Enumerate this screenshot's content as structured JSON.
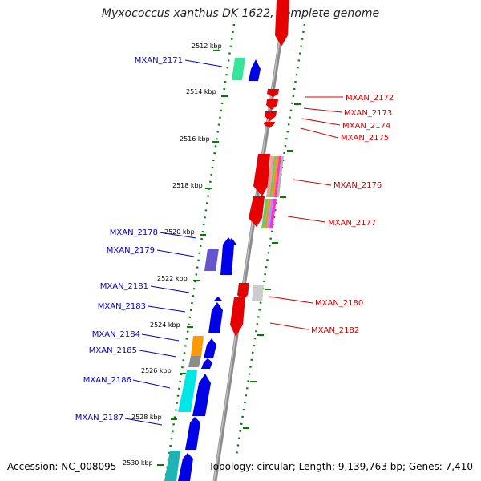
{
  "title": "Myxococcus xanthus DK 1622, complete genome",
  "footer": {
    "accession": "Accession: NC_008095",
    "summary": "Topology: circular; Length: 9,139,763 bp; Genes: 7,410"
  },
  "positions": [
    "2512 kbp",
    "2514 kbp",
    "2516 kbp",
    "2518 kbp",
    "2520 kbp",
    "2522 kbp",
    "2524 kbp",
    "2526 kbp",
    "2528 kbp",
    "2530 kbp"
  ],
  "genes_reverse": [
    "MXAN_2172",
    "MXAN_2173",
    "MXAN_2174",
    "MXAN_2175",
    "MXAN_2176",
    "MXAN_2177",
    "MXAN_2180",
    "MXAN_2182"
  ],
  "genes_forward": [
    "MXAN_2171",
    "MXAN_2178",
    "MXAN_2179",
    "MXAN_2181",
    "MXAN_2183",
    "MXAN_2184",
    "MXAN_2185",
    "MXAN_2186",
    "MXAN_2187"
  ],
  "colors": {
    "forward_strand": "#0000e6",
    "reverse_strand": "#e60000",
    "backbone": "#8c8c8c",
    "tick": "#008000",
    "forward_label": "#0000cc",
    "reverse_label": "#d40000"
  }
}
